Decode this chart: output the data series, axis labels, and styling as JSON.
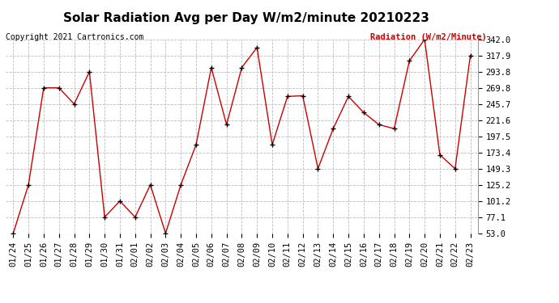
{
  "title": "Solar Radiation Avg per Day W/m2/minute 20210223",
  "copyright": "Copyright 2021 Cartronics.com",
  "legend_label": "Radiation (W/m2/Minute)",
  "dates": [
    "01/24",
    "01/25",
    "01/26",
    "01/27",
    "01/28",
    "01/29",
    "01/30",
    "01/31",
    "02/01",
    "02/02",
    "02/03",
    "02/04",
    "02/05",
    "02/06",
    "02/07",
    "02/08",
    "02/09",
    "02/10",
    "02/11",
    "02/12",
    "02/13",
    "02/14",
    "02/15",
    "02/16",
    "02/17",
    "02/18",
    "02/19",
    "02/20",
    "02/21",
    "02/22",
    "02/23"
  ],
  "values": [
    53.0,
    125.2,
    269.8,
    269.8,
    245.7,
    293.8,
    77.1,
    101.2,
    77.1,
    125.2,
    53.0,
    125.2,
    185.0,
    300.0,
    215.0,
    300.0,
    330.0,
    185.0,
    257.0,
    258.0,
    149.3,
    209.0,
    257.0,
    233.0,
    215.0,
    209.0,
    310.0,
    342.0,
    170.0,
    149.3,
    317.9
  ],
  "line_color": "#cc0000",
  "marker_color": "#000000",
  "background_color": "#ffffff",
  "grid_color": "#bbbbbb",
  "yticks": [
    53.0,
    77.1,
    101.2,
    125.2,
    149.3,
    173.4,
    197.5,
    221.6,
    245.7,
    269.8,
    293.8,
    317.9,
    342.0
  ],
  "ylim": [
    53.0,
    342.0
  ],
  "title_fontsize": 11,
  "tick_fontsize": 7.5
}
